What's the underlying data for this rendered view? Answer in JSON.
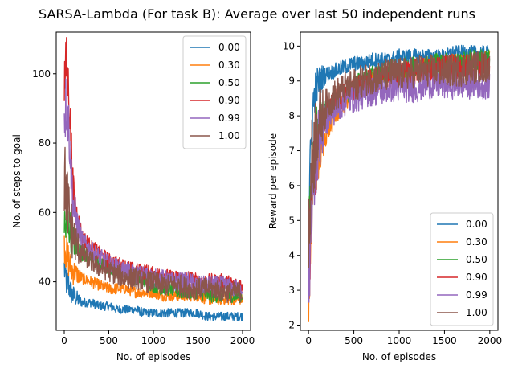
{
  "figure": {
    "title": "SARSA-Lambda (For task B): Average over last 50 independent runs"
  },
  "colors": [
    "#1f77b4",
    "#ff7f0e",
    "#2ca02c",
    "#d62728",
    "#9467bd",
    "#8c564b"
  ],
  "chart_data": [
    {
      "type": "line",
      "id": "steps",
      "title": "",
      "xlabel": "No. of episodes",
      "ylabel": "No. of steps to goal",
      "xlim": [
        -90,
        2090
      ],
      "ylim": [
        26,
        112
      ],
      "xticks": [
        0,
        500,
        1000,
        1500,
        2000
      ],
      "yticks": [
        40,
        60,
        80,
        100
      ],
      "legend_position": "top-right",
      "grid": false,
      "series": [
        {
          "name": "0.00",
          "x": [
            1,
            25,
            50,
            75,
            100,
            150,
            200,
            300,
            400,
            500,
            600,
            700,
            800,
            900,
            1000,
            1100,
            1200,
            1300,
            1400,
            1500,
            1600,
            1700,
            1800,
            1900,
            2000
          ],
          "values": [
            44,
            40,
            39,
            37,
            36,
            35,
            34,
            34,
            33,
            33,
            32,
            32,
            32,
            31,
            31,
            31,
            31,
            31,
            31,
            31,
            30,
            30,
            30,
            30,
            30
          ]
        },
        {
          "name": "0.30",
          "x": [
            1,
            25,
            50,
            75,
            100,
            150,
            200,
            300,
            400,
            500,
            600,
            700,
            800,
            900,
            1000,
            1100,
            1200,
            1300,
            1400,
            1500,
            1600,
            1700,
            1800,
            1900,
            2000
          ],
          "values": [
            52,
            48,
            46,
            44,
            43,
            42,
            41,
            40,
            39,
            38,
            38,
            38,
            37,
            37,
            37,
            36,
            36,
            36,
            36,
            36,
            35,
            35,
            35,
            35,
            35
          ]
        },
        {
          "name": "0.50",
          "x": [
            1,
            25,
            50,
            75,
            100,
            150,
            200,
            300,
            400,
            500,
            600,
            700,
            800,
            900,
            1000,
            1100,
            1200,
            1300,
            1400,
            1500,
            1600,
            1700,
            1800,
            1900,
            2000
          ],
          "values": [
            56,
            55,
            57,
            54,
            52,
            50,
            48,
            47,
            45,
            44,
            43,
            42,
            41,
            40,
            39,
            38,
            38,
            37,
            37,
            37,
            36,
            36,
            36,
            36,
            36
          ]
        },
        {
          "name": "0.90",
          "x": [
            1,
            25,
            50,
            75,
            100,
            150,
            200,
            300,
            400,
            500,
            600,
            700,
            800,
            900,
            1000,
            1100,
            1200,
            1300,
            1400,
            1500,
            1600,
            1700,
            1800,
            1900,
            2000
          ],
          "values": [
            98,
            103,
            95,
            82,
            66,
            58,
            53,
            50,
            48,
            46,
            45,
            44,
            43,
            43,
            42,
            42,
            41,
            41,
            41,
            40,
            40,
            40,
            40,
            39,
            39
          ]
        },
        {
          "name": "0.99",
          "x": [
            1,
            25,
            50,
            75,
            100,
            150,
            200,
            300,
            400,
            500,
            600,
            700,
            800,
            900,
            1000,
            1100,
            1200,
            1300,
            1400,
            1500,
            1600,
            1700,
            1800,
            1900,
            2000
          ],
          "values": [
            88,
            92,
            85,
            74,
            62,
            56,
            52,
            49,
            47,
            45,
            44,
            43,
            42,
            42,
            41,
            41,
            40,
            40,
            40,
            39,
            39,
            39,
            39,
            38,
            38
          ]
        },
        {
          "name": "1.00",
          "x": [
            1,
            25,
            50,
            75,
            100,
            150,
            200,
            300,
            400,
            500,
            600,
            700,
            800,
            900,
            1000,
            1100,
            1200,
            1300,
            1400,
            1500,
            1600,
            1700,
            1800,
            1900,
            2000
          ],
          "values": [
            70,
            66,
            60,
            56,
            53,
            50,
            48,
            46,
            44,
            43,
            42,
            41,
            41,
            40,
            40,
            39,
            39,
            39,
            38,
            38,
            38,
            38,
            37,
            37,
            37
          ]
        }
      ]
    },
    {
      "type": "line",
      "id": "reward",
      "title": "",
      "xlabel": "No. of episodes",
      "ylabel": "Reward per episode",
      "xlim": [
        -90,
        2090
      ],
      "ylim": [
        1.85,
        10.4
      ],
      "xticks": [
        0,
        500,
        1000,
        1500,
        2000
      ],
      "yticks": [
        2,
        3,
        4,
        5,
        6,
        7,
        8,
        9,
        10
      ],
      "legend_position": "bottom-right",
      "grid": false,
      "series": [
        {
          "name": "0.00",
          "x": [
            1,
            25,
            50,
            75,
            100,
            150,
            200,
            300,
            400,
            500,
            600,
            700,
            800,
            900,
            1000,
            1100,
            1200,
            1300,
            1400,
            1500,
            1600,
            1700,
            1800,
            1900,
            2000
          ],
          "values": [
            5.0,
            7.0,
            8.3,
            8.7,
            8.9,
            9.1,
            9.2,
            9.3,
            9.4,
            9.5,
            9.5,
            9.6,
            9.6,
            9.6,
            9.7,
            9.7,
            9.7,
            9.7,
            9.7,
            9.7,
            9.8,
            9.8,
            9.8,
            9.8,
            9.8
          ]
        },
        {
          "name": "0.30",
          "x": [
            1,
            25,
            50,
            75,
            100,
            150,
            200,
            300,
            400,
            500,
            600,
            700,
            800,
            900,
            1000,
            1100,
            1200,
            1300,
            1400,
            1500,
            1600,
            1700,
            1800,
            1900,
            2000
          ],
          "values": [
            3.0,
            4.5,
            5.5,
            6.2,
            6.6,
            7.1,
            7.5,
            8.0,
            8.4,
            8.7,
            8.9,
            9.0,
            9.1,
            9.2,
            9.3,
            9.3,
            9.4,
            9.4,
            9.4,
            9.5,
            9.5,
            9.5,
            9.5,
            9.6,
            9.6
          ]
        },
        {
          "name": "0.50",
          "x": [
            1,
            25,
            50,
            75,
            100,
            150,
            200,
            300,
            400,
            500,
            600,
            700,
            800,
            900,
            1000,
            1100,
            1200,
            1300,
            1400,
            1500,
            1600,
            1700,
            1800,
            1900,
            2000
          ],
          "values": [
            4.0,
            5.8,
            6.8,
            7.3,
            7.6,
            7.9,
            8.1,
            8.4,
            8.6,
            8.8,
            9.0,
            9.1,
            9.2,
            9.3,
            9.3,
            9.4,
            9.4,
            9.4,
            9.5,
            9.5,
            9.5,
            9.5,
            9.6,
            9.6,
            9.6
          ]
        },
        {
          "name": "0.90",
          "x": [
            1,
            25,
            50,
            75,
            100,
            150,
            200,
            300,
            400,
            500,
            600,
            700,
            800,
            900,
            1000,
            1100,
            1200,
            1300,
            1400,
            1500,
            1600,
            1700,
            1800,
            1900,
            2000
          ],
          "values": [
            3.5,
            5.0,
            6.0,
            6.8,
            7.3,
            7.8,
            8.1,
            8.4,
            8.6,
            8.8,
            8.9,
            9.0,
            9.1,
            9.1,
            9.2,
            9.2,
            9.3,
            9.3,
            9.3,
            9.4,
            9.4,
            9.4,
            9.4,
            9.4,
            9.4
          ]
        },
        {
          "name": "0.99",
          "x": [
            1,
            25,
            50,
            75,
            100,
            150,
            200,
            300,
            400,
            500,
            600,
            700,
            800,
            900,
            1000,
            1100,
            1200,
            1300,
            1400,
            1500,
            1600,
            1700,
            1800,
            1900,
            2000
          ],
          "values": [
            3.3,
            4.8,
            5.8,
            6.6,
            7.1,
            7.6,
            7.9,
            8.2,
            8.4,
            8.5,
            8.6,
            8.7,
            8.7,
            8.8,
            8.8,
            8.8,
            8.8,
            8.9,
            8.9,
            8.9,
            8.9,
            8.9,
            8.9,
            8.9,
            8.9
          ]
        },
        {
          "name": "1.00",
          "x": [
            1,
            25,
            50,
            75,
            100,
            150,
            200,
            300,
            400,
            500,
            600,
            700,
            800,
            900,
            1000,
            1100,
            1200,
            1300,
            1400,
            1500,
            1600,
            1700,
            1800,
            1900,
            2000
          ],
          "values": [
            4.5,
            6.0,
            6.9,
            7.4,
            7.7,
            8.0,
            8.3,
            8.6,
            8.8,
            8.9,
            9.0,
            9.1,
            9.1,
            9.2,
            9.2,
            9.2,
            9.3,
            9.3,
            9.3,
            9.3,
            9.3,
            9.3,
            9.4,
            9.4,
            9.4
          ]
        }
      ]
    }
  ]
}
